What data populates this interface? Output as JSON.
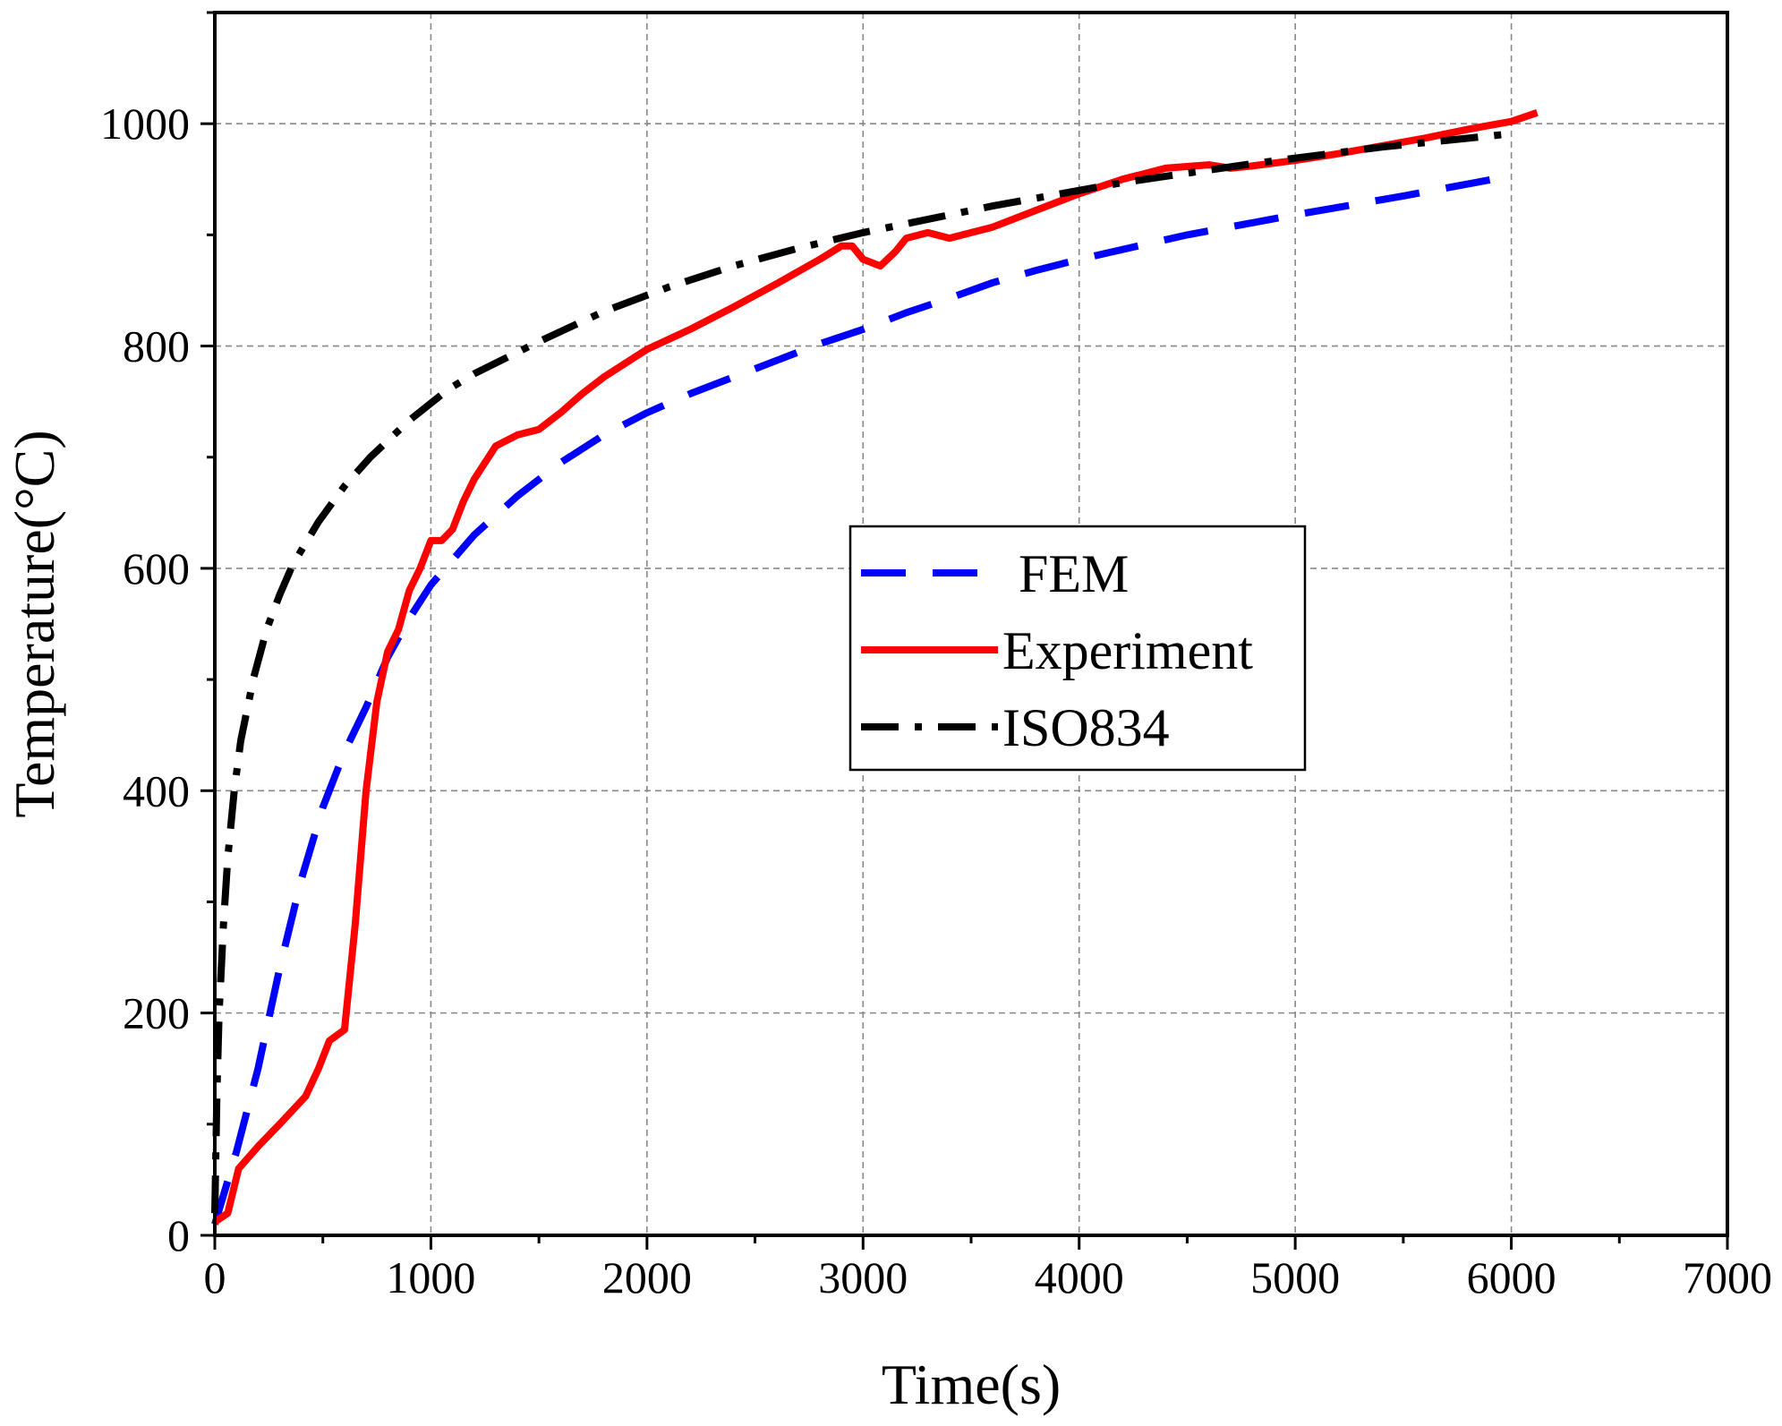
{
  "chart_data": {
    "type": "line",
    "title": "",
    "xlabel": "Time(s)",
    "ylabel": "Temperature(°C)",
    "xlim": [
      0,
      7000
    ],
    "ylim": [
      0,
      1100
    ],
    "xticks": [
      0,
      1000,
      2000,
      3000,
      4000,
      5000,
      6000,
      7000
    ],
    "yticks": [
      0,
      200,
      400,
      600,
      800,
      1000
    ],
    "xtick_labels": [
      "0",
      "1000",
      "2000",
      "3000",
      "4000",
      "5000",
      "6000",
      "7000"
    ],
    "ytick_labels": [
      "0",
      "200",
      "400",
      "600",
      "800",
      "1000"
    ],
    "grid": true,
    "legend_position": "center-right",
    "series": [
      {
        "name": "FEM",
        "color": "#0000ff",
        "style": "dashed",
        "x": [
          0,
          100,
          200,
          300,
          400,
          500,
          600,
          700,
          800,
          900,
          1000,
          1200,
          1400,
          1600,
          1800,
          2000,
          2200,
          2400,
          2600,
          2800,
          3000,
          3200,
          3400,
          3600,
          3800,
          4000,
          4500,
          5000,
          5500,
          6000
        ],
        "y": [
          10,
          75,
          150,
          240,
          320,
          385,
          435,
          475,
          520,
          555,
          585,
          630,
          665,
          695,
          720,
          740,
          757,
          772,
          787,
          802,
          815,
          830,
          843,
          857,
          868,
          878,
          900,
          918,
          935,
          953
        ]
      },
      {
        "name": "Experiment",
        "color": "#ff0000",
        "style": "solid",
        "x": [
          0,
          60,
          110,
          200,
          300,
          420,
          480,
          530,
          600,
          650,
          700,
          750,
          800,
          850,
          900,
          950,
          1000,
          1050,
          1100,
          1150,
          1200,
          1300,
          1400,
          1500,
          1600,
          1700,
          1800,
          2000,
          2200,
          2400,
          2600,
          2800,
          2900,
          2950,
          3000,
          3080,
          3150,
          3200,
          3300,
          3400,
          3500,
          3600,
          3800,
          4000,
          4200,
          4400,
          4600,
          4700,
          4800,
          5000,
          5200,
          5400,
          5600,
          5800,
          6000,
          6120
        ],
        "y": [
          12,
          20,
          60,
          80,
          100,
          125,
          150,
          175,
          185,
          280,
          400,
          480,
          525,
          545,
          580,
          600,
          625,
          625,
          635,
          660,
          680,
          710,
          720,
          725,
          740,
          757,
          772,
          797,
          815,
          835,
          856,
          878,
          890,
          890,
          878,
          872,
          885,
          897,
          902,
          897,
          902,
          907,
          922,
          937,
          950,
          960,
          963,
          960,
          962,
          967,
          973,
          980,
          987,
          995,
          1002,
          1010
        ]
      },
      {
        "name": "ISO834",
        "color": "#000000",
        "style": "dashdot",
        "x": [
          0,
          10,
          20,
          40,
          60,
          90,
          120,
          180,
          240,
          300,
          360,
          480,
          600,
          720,
          900,
          1080,
          1200,
          1500,
          1800,
          2100,
          2400,
          2700,
          3000,
          3600,
          4200,
          4800,
          5400,
          6000
        ],
        "y": [
          20,
          130,
          200,
          280,
          340,
          400,
          445,
          502,
          545,
          576,
          603,
          642,
          674,
          700,
          733,
          761,
          775,
          804,
          831,
          853,
          872,
          888,
          902,
          926,
          947,
          964,
          979,
          991
        ]
      }
    ]
  }
}
